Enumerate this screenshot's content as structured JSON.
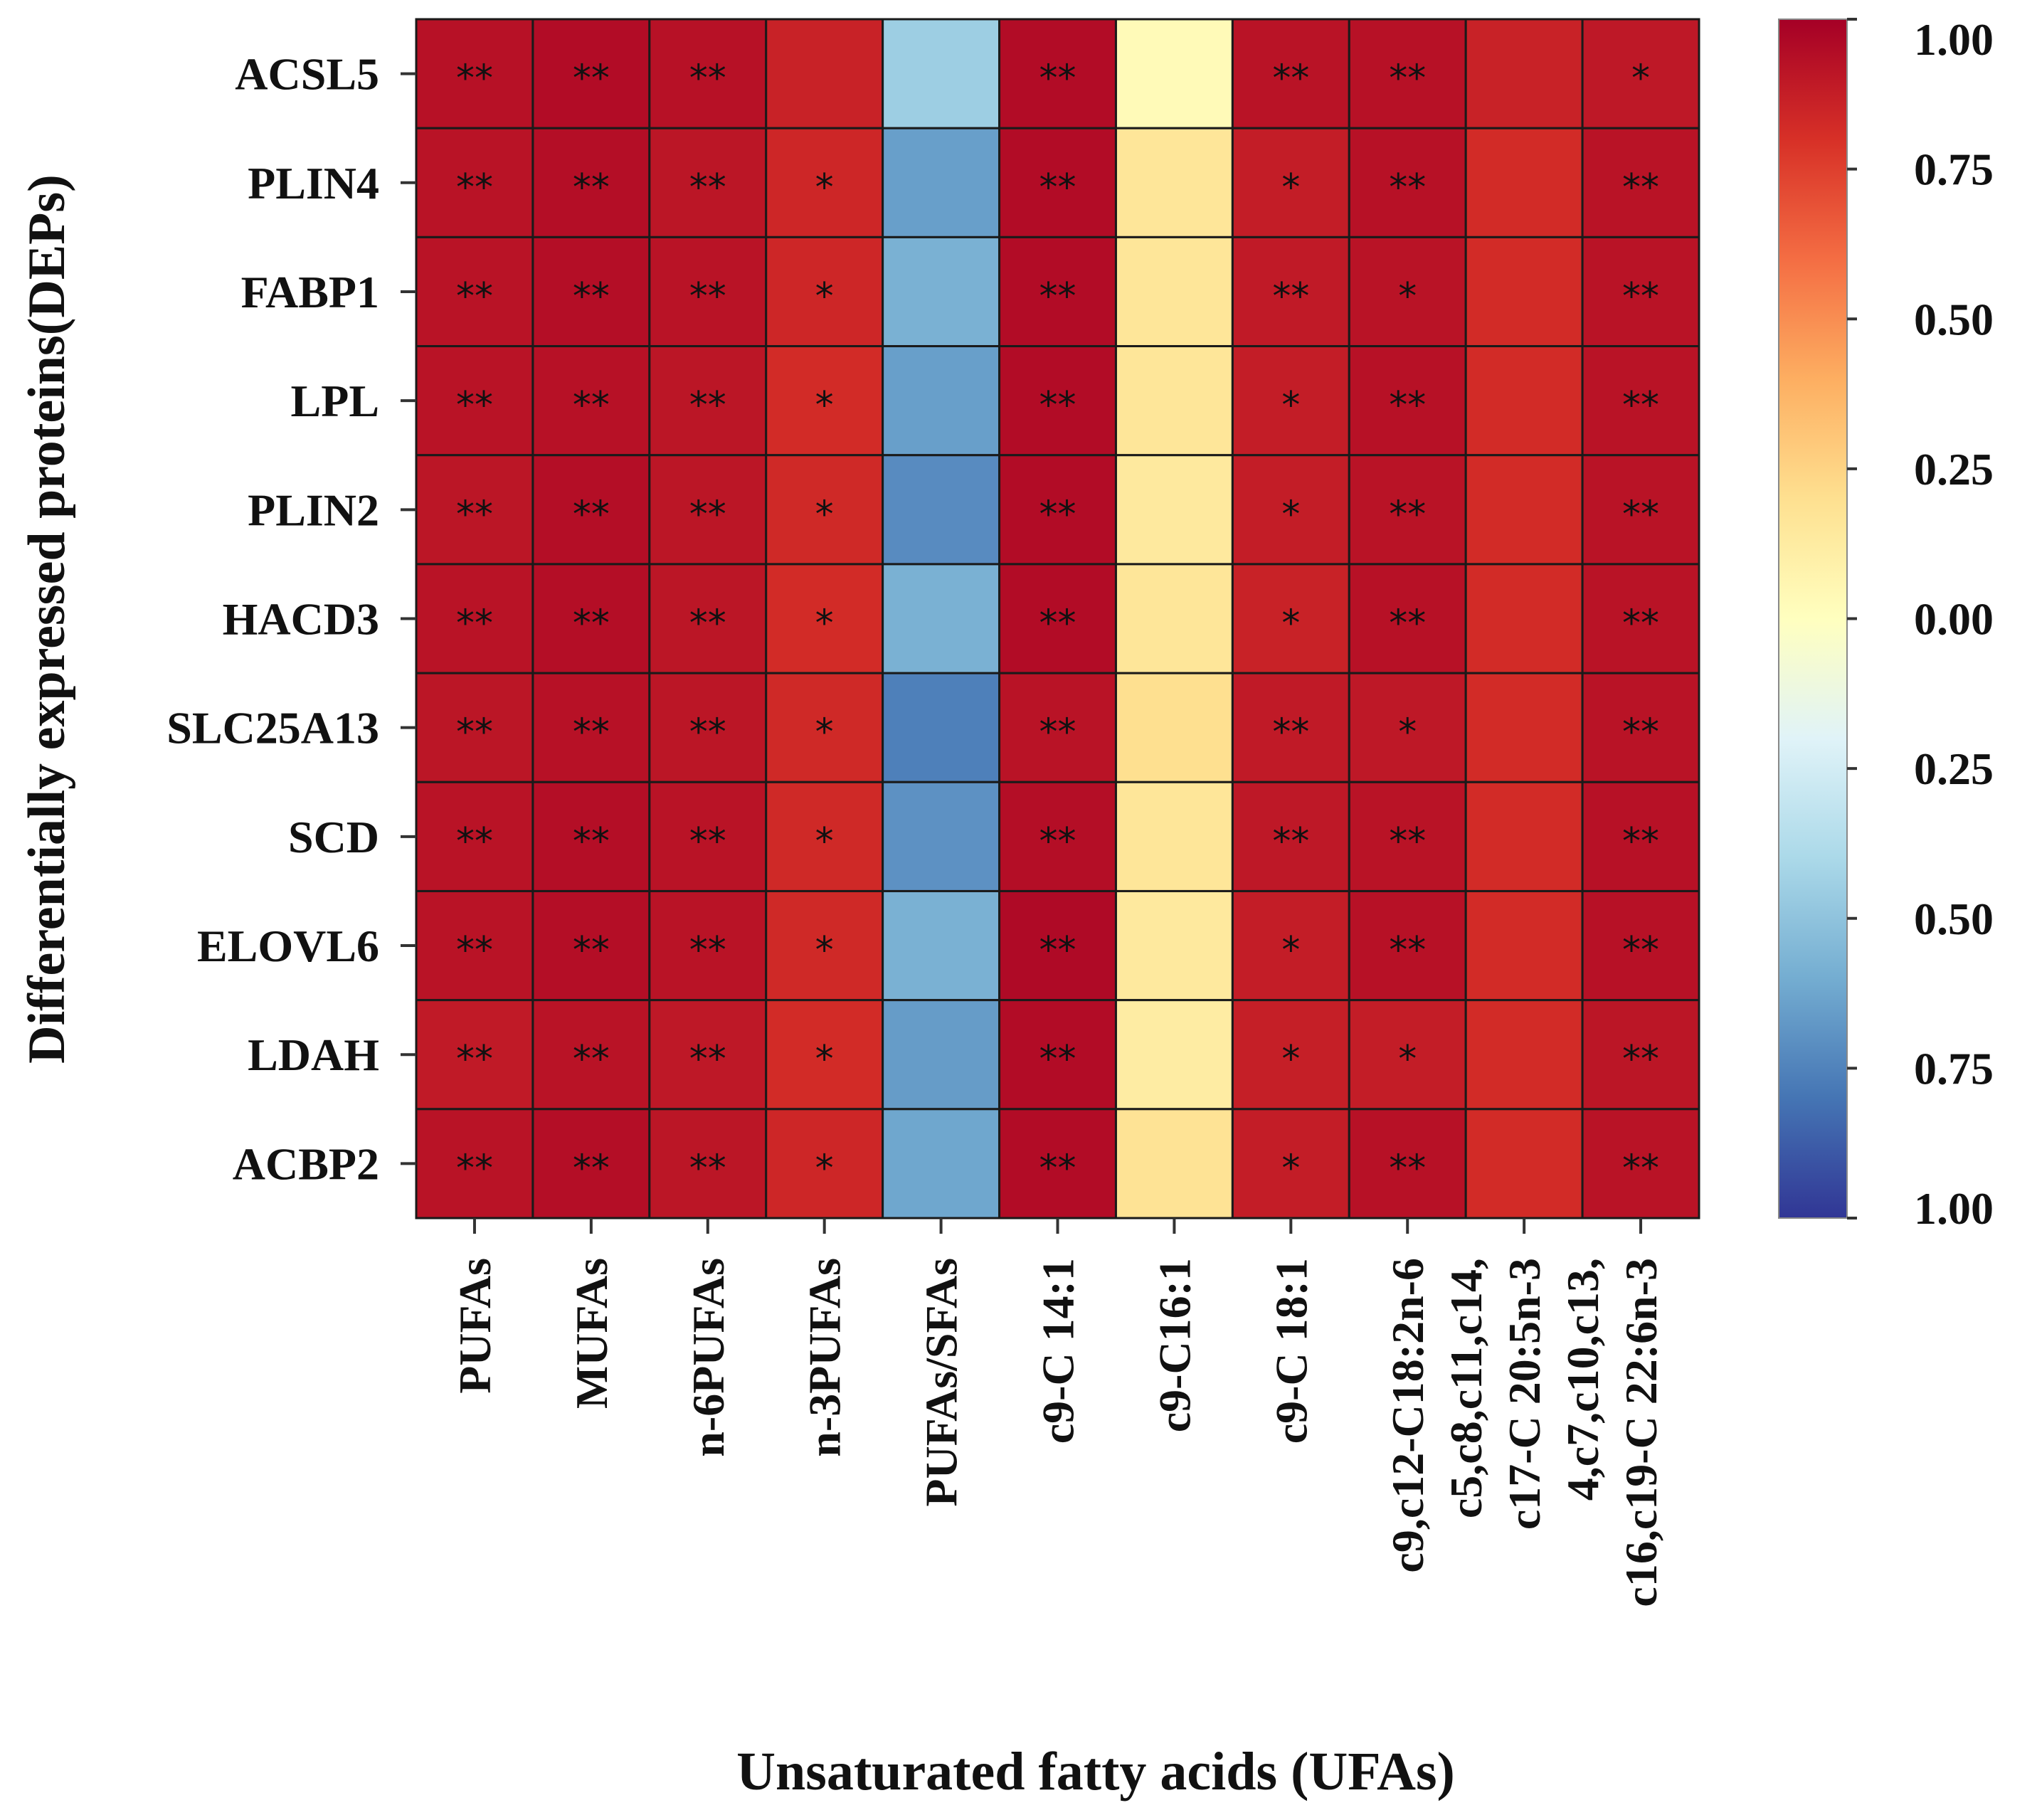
{
  "chart_data": {
    "type": "heatmap",
    "xlabel": "Unsaturated fatty acids (UFAs)",
    "ylabel": "Differentially expressed proteins(DEPs)",
    "rows": [
      "ACSL5",
      "PLIN4",
      "FABP1",
      "LPL",
      "PLIN2",
      "HACD3",
      "SLC25A13",
      "SCD",
      "ELOVL6",
      "LDAH",
      "ACBP2"
    ],
    "columns": [
      [
        "PUFAs"
      ],
      [
        "MUFAs"
      ],
      [
        "n-6PUFAs"
      ],
      [
        "n-3PUFAs"
      ],
      [
        "PUFAs/SFAs"
      ],
      [
        "c9-C 14:1"
      ],
      [
        "c9-C16:1"
      ],
      [
        "c9-C 18:1"
      ],
      [
        "c9,c12-C18:2n-6"
      ],
      [
        "c5,c8,c11,c14,",
        "c17-C 20:5n-3"
      ],
      [
        "4,c7,c10,c13,",
        "c16,c19-C 22:6n-3"
      ]
    ],
    "values": [
      [
        0.93,
        0.95,
        0.93,
        0.86,
        -0.45,
        0.95,
        0.03,
        0.92,
        0.93,
        0.86,
        0.9
      ],
      [
        0.92,
        0.94,
        0.91,
        0.84,
        -0.65,
        0.95,
        0.16,
        0.88,
        0.93,
        0.82,
        0.92
      ],
      [
        0.92,
        0.94,
        0.92,
        0.84,
        -0.58,
        0.95,
        0.16,
        0.89,
        0.92,
        0.82,
        0.92
      ],
      [
        0.92,
        0.93,
        0.91,
        0.82,
        -0.65,
        0.95,
        0.16,
        0.88,
        0.93,
        0.82,
        0.92
      ],
      [
        0.91,
        0.94,
        0.91,
        0.83,
        -0.72,
        0.95,
        0.14,
        0.88,
        0.92,
        0.82,
        0.92
      ],
      [
        0.92,
        0.94,
        0.91,
        0.82,
        -0.58,
        0.95,
        0.16,
        0.86,
        0.93,
        0.82,
        0.92
      ],
      [
        0.91,
        0.93,
        0.91,
        0.83,
        -0.76,
        0.92,
        0.2,
        0.89,
        0.9,
        0.82,
        0.92
      ],
      [
        0.92,
        0.94,
        0.92,
        0.83,
        -0.7,
        0.94,
        0.16,
        0.9,
        0.92,
        0.82,
        0.93
      ],
      [
        0.92,
        0.94,
        0.92,
        0.83,
        -0.58,
        0.96,
        0.14,
        0.88,
        0.93,
        0.82,
        0.93
      ],
      [
        0.89,
        0.92,
        0.9,
        0.82,
        -0.66,
        0.95,
        0.12,
        0.87,
        0.88,
        0.82,
        0.91
      ],
      [
        0.92,
        0.94,
        0.91,
        0.84,
        -0.62,
        0.95,
        0.18,
        0.88,
        0.93,
        0.82,
        0.92
      ]
    ],
    "significance": [
      [
        "**",
        "**",
        "**",
        "",
        "",
        "**",
        "",
        "**",
        "**",
        "",
        "*"
      ],
      [
        "**",
        "**",
        "**",
        "*",
        "",
        "**",
        "",
        "*",
        "**",
        "",
        "**"
      ],
      [
        "**",
        "**",
        "**",
        "*",
        "",
        "**",
        "",
        "**",
        "*",
        "",
        "**"
      ],
      [
        "**",
        "**",
        "**",
        "*",
        "",
        "**",
        "",
        "*",
        "**",
        "",
        "**"
      ],
      [
        "**",
        "**",
        "**",
        "*",
        "",
        "**",
        "",
        "*",
        "**",
        "",
        "**"
      ],
      [
        "**",
        "**",
        "**",
        "*",
        "",
        "**",
        "",
        "*",
        "**",
        "",
        "**"
      ],
      [
        "**",
        "**",
        "**",
        "*",
        "",
        "**",
        "",
        "**",
        "*",
        "",
        "**"
      ],
      [
        "**",
        "**",
        "**",
        "*",
        "",
        "**",
        "",
        "**",
        "**",
        "",
        "**"
      ],
      [
        "**",
        "**",
        "**",
        "*",
        "",
        "**",
        "",
        "*",
        "**",
        "",
        "**"
      ],
      [
        "**",
        "**",
        "**",
        "*",
        "",
        "**",
        "",
        "*",
        "*",
        "",
        "**"
      ],
      [
        "**",
        "**",
        "**",
        "*",
        "",
        "**",
        "",
        "*",
        "**",
        "",
        "**"
      ]
    ],
    "colorbar": {
      "range": [
        -1,
        1
      ],
      "tick_values": [
        1.0,
        0.75,
        0.5,
        0.25,
        0.0,
        -0.25,
        -0.5,
        -0.75,
        -1.0
      ],
      "tick_labels": [
        "1.00",
        "0.75",
        "0.50",
        "0.25",
        "0.00",
        "0.25",
        "0.50",
        "0.75",
        "1.00"
      ],
      "colormap": "RdYlBu_r",
      "stops": [
        "#313695",
        "#4575b4",
        "#74add1",
        "#abd9e9",
        "#e0f3f8",
        "#ffffbf",
        "#fee090",
        "#fdae61",
        "#f46d43",
        "#d73027",
        "#a50026"
      ]
    }
  }
}
